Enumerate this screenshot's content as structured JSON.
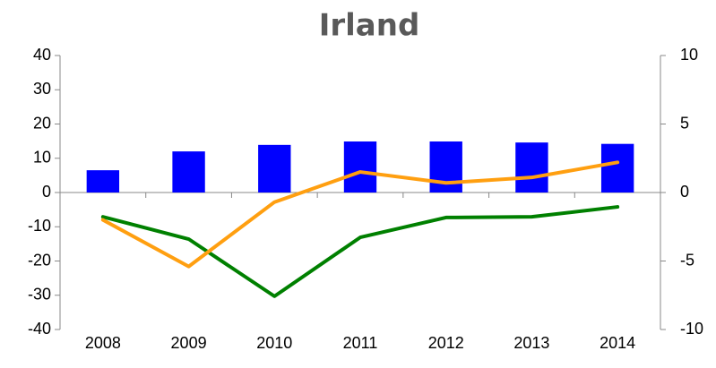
{
  "chart_data": {
    "type": "bar-line",
    "title": "Irland",
    "categories": [
      "2008",
      "2009",
      "2010",
      "2011",
      "2012",
      "2013",
      "2014"
    ],
    "series": [
      {
        "type": "bar",
        "color": "#0000ff",
        "values": [
          6.5,
          12,
          13.9,
          14.9,
          14.9,
          14.6,
          14.2
        ]
      },
      {
        "type": "line",
        "color": "#008000",
        "values": [
          -7.1,
          -13.6,
          -30.3,
          -13.1,
          -7.3,
          -7.1,
          -4.2
        ]
      },
      {
        "type": "line",
        "color": "#ff9f10",
        "axis": "y2",
        "values": [
          -2.0,
          -5.4,
          -0.7,
          1.5,
          0.7,
          1.1,
          2.2
        ]
      }
    ],
    "ylim": [
      -40,
      40
    ],
    "yticks": [
      -40,
      -30,
      -20,
      -10,
      0,
      10,
      20,
      30,
      40
    ],
    "y2lim": [
      -10,
      10
    ],
    "y2ticks": [
      -10,
      -5,
      0,
      5,
      10
    ],
    "grid": false
  }
}
